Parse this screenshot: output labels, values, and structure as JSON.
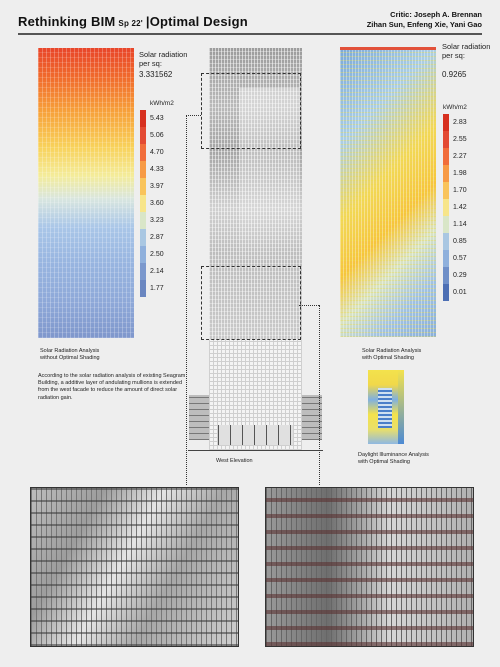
{
  "header": {
    "title": "Rethinking BIM",
    "semester": "Sp 22'",
    "bar": "|",
    "subtitle": "Optimal Design",
    "critic": "Critic: Joseph A. Brennan",
    "team": "Zihan Sun, Enfeng Xie, Yani Gao"
  },
  "left_panel": {
    "radiation_label_1": "Solar radiation",
    "radiation_label_2": "per sq:",
    "radiation_value": "3.331562",
    "unit": "kWh/m2",
    "ticks": [
      "5.43",
      "5.06",
      "4.70",
      "4.33",
      "3.97",
      "3.60",
      "3.23",
      "2.87",
      "2.50",
      "2.14",
      "1.77"
    ],
    "colors": [
      "#d7301f",
      "#e34a33",
      "#f16d3b",
      "#f79a45",
      "#f9c45c",
      "#f7e58a",
      "#d9e6c8",
      "#a9c7e2",
      "#8fb0dc",
      "#7b98cd",
      "#6a86c0"
    ],
    "caption_1": "Solar Radiation Analysis",
    "caption_2": "without Optimal Shading"
  },
  "right_panel": {
    "radiation_label_1": "Solar radiation",
    "radiation_label_2": "per sq:",
    "radiation_value": "0.9265",
    "unit": "kWh/m2",
    "ticks": [
      "2.83",
      "2.55",
      "2.27",
      "1.98",
      "1.70",
      "1.42",
      "1.14",
      "0.85",
      "0.57",
      "0.29",
      "0.01"
    ],
    "colors": [
      "#d7301f",
      "#e34a33",
      "#f16d3b",
      "#f79a45",
      "#f9c45c",
      "#f7e58a",
      "#d9e6c8",
      "#a9c7e2",
      "#8fb0dc",
      "#6f8fc8",
      "#4d6fb4"
    ],
    "caption_1": "Solar Radiation Analysis",
    "caption_2": "with Optimal Shading"
  },
  "description": "According to the solar radiation analysis of existing Seagram Building, a additive layer of andulating mullions is extended from the west facade to reduce the amount of direct solar radiation gain.",
  "elevation_caption": "West Elevation",
  "daylight_caption_1": "Daylight Illuminance Analysis",
  "daylight_caption_2": "with Optimal Shading"
}
